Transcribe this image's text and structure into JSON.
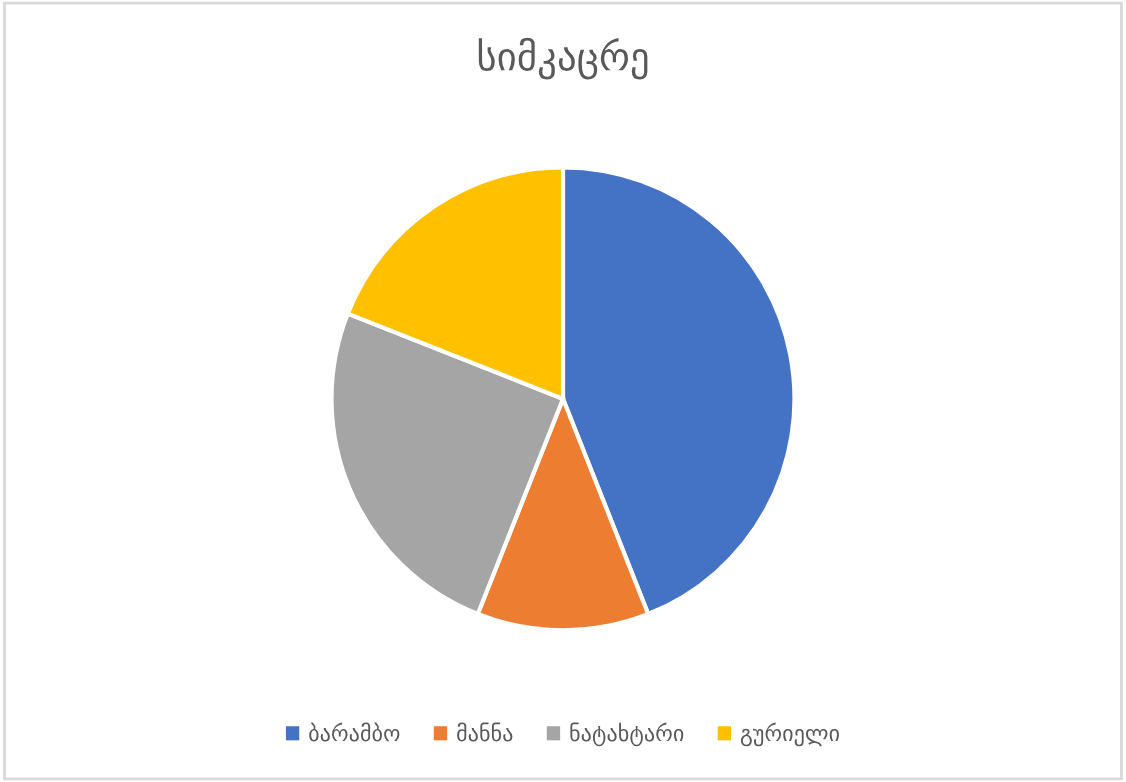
{
  "chart_data": {
    "type": "pie",
    "title": "სიმკაცრე",
    "categories": [
      "ბარამბო",
      "მანნა",
      "ნატახტარი",
      "გურიელი"
    ],
    "values": [
      44,
      12,
      25,
      19
    ],
    "colors": [
      "#4472c4",
      "#ed7d31",
      "#a5a5a5",
      "#ffc000"
    ],
    "legend": "bottom"
  }
}
